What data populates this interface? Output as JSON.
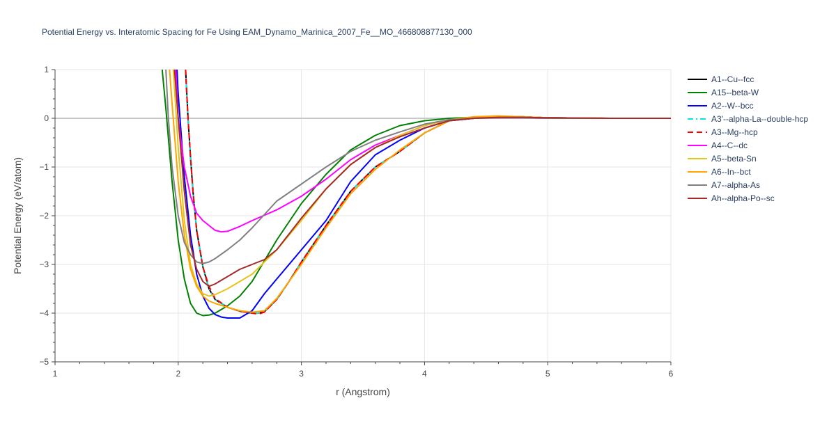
{
  "chart_data": {
    "type": "line",
    "title": "Potential Energy vs. Interatomic Spacing for Fe Using EAM_Dynamo_Marinica_2007_Fe__MO_466808877130_000",
    "xlabel": "r (Angstrom)",
    "ylabel": "Potential Energy (eV/atom)",
    "xlim": [
      1,
      6
    ],
    "ylim": [
      -5,
      1
    ],
    "xticks": [
      1,
      2,
      3,
      4,
      5,
      6
    ],
    "yticks": [
      -5,
      -4,
      -3,
      -2,
      -1,
      0,
      1
    ],
    "xtick_labels": [
      "1",
      "2",
      "3",
      "4",
      "5",
      "6"
    ],
    "ytick_labels": [
      "−5",
      "−4",
      "−3",
      "−2",
      "−1",
      "0",
      "1"
    ],
    "grid": true,
    "legend_position": "right",
    "series": [
      {
        "name": "A1--Cu--fcc",
        "color": "#000000",
        "dash": "solid",
        "x": [
          2.06,
          2.08,
          2.1,
          2.12,
          2.15,
          2.2,
          2.25,
          2.3,
          2.4,
          2.5,
          2.6,
          2.65,
          2.7,
          2.8,
          2.9,
          3.0,
          3.2,
          3.4,
          3.6,
          3.8,
          4.0,
          4.2,
          4.4,
          4.6,
          4.8,
          5.0,
          5.5,
          6.0
        ],
        "y": [
          1.0,
          0.0,
          -0.8,
          -1.5,
          -2.3,
          -3.05,
          -3.5,
          -3.72,
          -3.88,
          -3.96,
          -4.0,
          -4.0,
          -3.97,
          -3.72,
          -3.35,
          -2.95,
          -2.2,
          -1.5,
          -1.0,
          -0.68,
          -0.3,
          -0.05,
          0.0,
          0.04,
          0.03,
          0.01,
          0.0,
          0.0
        ]
      },
      {
        "name": "A15--beta-W",
        "color": "#008000",
        "dash": "solid",
        "x": [
          1.87,
          1.9,
          1.95,
          2.0,
          2.05,
          2.1,
          2.15,
          2.2,
          2.25,
          2.3,
          2.4,
          2.5,
          2.6,
          2.8,
          3.0,
          3.2,
          3.4,
          3.6,
          3.8,
          4.0,
          4.2,
          4.4,
          4.6,
          4.8,
          5.0,
          5.5,
          6.0
        ],
        "y": [
          1.0,
          0.2,
          -1.3,
          -2.5,
          -3.3,
          -3.8,
          -4.0,
          -4.05,
          -4.04,
          -4.0,
          -3.85,
          -3.65,
          -3.35,
          -2.5,
          -1.75,
          -1.15,
          -0.65,
          -0.35,
          -0.15,
          -0.05,
          0.0,
          0.02,
          0.03,
          0.02,
          0.01,
          0.0,
          0.0
        ]
      },
      {
        "name": "A2--W--bcc",
        "color": "#0000ff",
        "dash": "solid",
        "x": [
          1.99,
          2.0,
          2.05,
          2.1,
          2.15,
          2.2,
          2.25,
          2.3,
          2.35,
          2.4,
          2.5,
          2.6,
          2.7,
          2.8,
          3.0,
          3.2,
          3.4,
          3.6,
          3.8,
          4.0,
          4.2,
          4.4,
          4.6,
          4.8,
          5.0,
          5.5,
          6.0
        ],
        "y": [
          1.0,
          0.5,
          -1.2,
          -2.4,
          -3.2,
          -3.65,
          -3.9,
          -4.03,
          -4.08,
          -4.1,
          -4.1,
          -3.95,
          -3.6,
          -3.3,
          -2.7,
          -2.1,
          -1.3,
          -0.75,
          -0.45,
          -0.2,
          -0.05,
          0.0,
          0.03,
          0.03,
          0.01,
          0.0,
          0.0
        ]
      },
      {
        "name": "A3'--alpha-La--double-hcp",
        "color": "#00e5e5",
        "dash": "dashdot",
        "x": [
          2.06,
          2.08,
          2.1,
          2.12,
          2.15,
          2.2,
          2.25,
          2.3,
          2.4,
          2.5,
          2.6,
          2.65,
          2.7,
          2.8,
          2.9,
          3.0,
          3.2,
          3.4,
          3.6,
          3.8,
          4.0,
          4.2,
          4.4,
          4.6,
          4.8,
          5.0,
          5.5,
          6.0
        ],
        "y": [
          1.0,
          0.0,
          -0.8,
          -1.5,
          -2.3,
          -3.05,
          -3.5,
          -3.72,
          -3.88,
          -3.96,
          -4.0,
          -4.0,
          -3.97,
          -3.72,
          -3.35,
          -2.95,
          -2.2,
          -1.5,
          -1.0,
          -0.68,
          -0.3,
          -0.05,
          0.0,
          0.04,
          0.03,
          0.01,
          0.0,
          0.0
        ]
      },
      {
        "name": "A3--Mg--hcp",
        "color": "#ff0000",
        "dash": "dash",
        "x": [
          2.06,
          2.08,
          2.1,
          2.12,
          2.15,
          2.2,
          2.25,
          2.3,
          2.4,
          2.5,
          2.6,
          2.65,
          2.7,
          2.8,
          2.9,
          3.0,
          3.2,
          3.4,
          3.6,
          3.8,
          4.0,
          4.2,
          4.4,
          4.6,
          4.8,
          5.0,
          5.5,
          6.0
        ],
        "y": [
          1.0,
          0.0,
          -0.8,
          -1.5,
          -2.3,
          -3.05,
          -3.45,
          -3.7,
          -3.88,
          -3.96,
          -4.0,
          -4.02,
          -3.98,
          -3.72,
          -3.35,
          -2.95,
          -2.2,
          -1.5,
          -1.0,
          -0.68,
          -0.3,
          -0.05,
          0.0,
          0.04,
          0.03,
          0.01,
          0.0,
          0.0
        ]
      },
      {
        "name": "A4--C--dc",
        "color": "#ff00ff",
        "dash": "solid",
        "x": [
          1.98,
          2.0,
          2.05,
          2.1,
          2.15,
          2.2,
          2.25,
          2.3,
          2.35,
          2.4,
          2.5,
          2.6,
          2.8,
          3.0,
          3.2,
          3.4,
          3.6,
          3.8,
          4.0,
          4.2,
          4.4,
          4.6,
          4.8,
          5.0,
          5.5,
          6.0
        ],
        "y": [
          1.0,
          0.0,
          -1.0,
          -1.6,
          -1.95,
          -2.1,
          -2.2,
          -2.3,
          -2.33,
          -2.32,
          -2.22,
          -2.1,
          -1.88,
          -1.6,
          -1.25,
          -0.85,
          -0.55,
          -0.35,
          -0.15,
          -0.03,
          0.0,
          0.01,
          0.01,
          0.0,
          0.0,
          0.0
        ]
      },
      {
        "name": "A5--beta-Sn",
        "color": "#e5c31a",
        "dash": "solid",
        "x": [
          1.96,
          1.98,
          2.0,
          2.05,
          2.1,
          2.15,
          2.2,
          2.25,
          2.3,
          2.4,
          2.5,
          2.6,
          2.8,
          3.0,
          3.2,
          3.4,
          3.6,
          3.8,
          4.0,
          4.2,
          4.4,
          4.6,
          4.8,
          5.0,
          5.5,
          6.0
        ],
        "y": [
          1.0,
          0.2,
          -0.6,
          -2.1,
          -3.0,
          -3.4,
          -3.6,
          -3.65,
          -3.62,
          -3.5,
          -3.35,
          -3.2,
          -2.7,
          -2.1,
          -1.45,
          -0.95,
          -0.6,
          -0.35,
          -0.15,
          -0.03,
          0.03,
          0.04,
          0.03,
          0.01,
          0.0,
          0.0
        ]
      },
      {
        "name": "A6--In--bct",
        "color": "#ffa500",
        "dash": "solid",
        "x": [
          1.93,
          1.95,
          2.0,
          2.05,
          2.1,
          2.15,
          2.2,
          2.25,
          2.3,
          2.4,
          2.5,
          2.6,
          2.7,
          2.8,
          3.0,
          3.2,
          3.4,
          3.6,
          3.8,
          4.0,
          4.2,
          4.4,
          4.6,
          4.8,
          5.0,
          5.5,
          6.0
        ],
        "y": [
          1.0,
          0.3,
          -1.3,
          -2.4,
          -3.1,
          -3.45,
          -3.65,
          -3.75,
          -3.8,
          -3.88,
          -3.95,
          -3.98,
          -3.95,
          -3.7,
          -3.0,
          -2.25,
          -1.55,
          -1.05,
          -0.65,
          -0.3,
          -0.05,
          0.03,
          0.05,
          0.03,
          0.01,
          0.0,
          0.0
        ]
      },
      {
        "name": "A7--alpha-As",
        "color": "#808080",
        "dash": "solid",
        "x": [
          1.9,
          1.92,
          1.95,
          2.0,
          2.05,
          2.1,
          2.15,
          2.2,
          2.25,
          2.3,
          2.4,
          2.5,
          2.6,
          2.8,
          3.0,
          3.2,
          3.4,
          3.6,
          3.8,
          4.0,
          4.2,
          4.4,
          4.6,
          4.8,
          5.0,
          5.5,
          6.0
        ],
        "y": [
          1.0,
          0.0,
          -1.0,
          -2.0,
          -2.55,
          -2.8,
          -2.95,
          -2.98,
          -2.95,
          -2.88,
          -2.7,
          -2.5,
          -2.25,
          -1.7,
          -1.35,
          -1.0,
          -0.68,
          -0.45,
          -0.28,
          -0.12,
          -0.03,
          0.0,
          0.01,
          0.01,
          0.0,
          0.0,
          0.0
        ]
      },
      {
        "name": "Ah--alpha-Po--sc",
        "color": "#a52a2a",
        "dash": "solid",
        "x": [
          1.97,
          2.0,
          2.05,
          2.1,
          2.15,
          2.2,
          2.25,
          2.3,
          2.4,
          2.5,
          2.6,
          2.7,
          2.8,
          3.0,
          3.2,
          3.4,
          3.6,
          3.8,
          4.0,
          4.2,
          4.4,
          4.6,
          4.8,
          5.0,
          5.5,
          6.0
        ],
        "y": [
          1.0,
          0.0,
          -1.5,
          -2.6,
          -3.1,
          -3.35,
          -3.45,
          -3.4,
          -3.25,
          -3.1,
          -3.0,
          -2.9,
          -2.7,
          -2.05,
          -1.45,
          -0.95,
          -0.6,
          -0.38,
          -0.2,
          -0.05,
          0.0,
          0.02,
          0.02,
          0.01,
          0.0,
          0.0
        ]
      }
    ]
  }
}
